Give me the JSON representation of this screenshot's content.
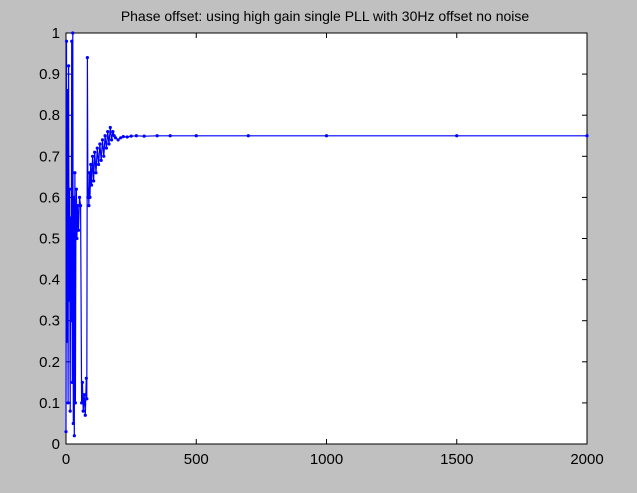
{
  "window": {
    "background": "#c0c0c0"
  },
  "chart_data": {
    "type": "line",
    "title": "Phase offset: using high gain single PLL with 30Hz offset no noise",
    "xlabel": "",
    "ylabel": "",
    "xlim": [
      0,
      2000
    ],
    "ylim": [
      0,
      1
    ],
    "xticks": [
      0,
      500,
      1000,
      1500,
      2000
    ],
    "xtick_labels": [
      "0",
      "500",
      "1000",
      "1500",
      "2000"
    ],
    "yticks": [
      0,
      0.1,
      0.2,
      0.3,
      0.4,
      0.5,
      0.6,
      0.7,
      0.8,
      0.9,
      1
    ],
    "ytick_labels": [
      "0",
      "0.1",
      "0.2",
      "0.3",
      "0.4",
      "0.5",
      "0.6",
      "0.7",
      "0.8",
      "0.9",
      "1"
    ],
    "grid": false,
    "legend": "none",
    "series": [
      {
        "color": "#0000ff",
        "marker": "dot",
        "x": [
          0,
          2,
          4,
          6,
          8,
          10,
          12,
          14,
          16,
          18,
          20,
          22,
          24,
          26,
          28,
          30,
          32,
          34,
          36,
          38,
          40,
          42,
          45,
          48,
          52,
          56,
          60,
          63,
          66,
          70,
          74,
          78,
          80,
          82,
          84,
          86,
          88,
          90,
          92,
          95,
          98,
          102,
          106,
          110,
          115,
          120,
          125,
          130,
          135,
          140,
          145,
          150,
          155,
          160,
          165,
          170,
          175,
          180,
          185,
          190,
          200,
          210,
          220,
          235,
          250,
          270,
          300,
          350,
          400,
          500,
          700,
          1000,
          1500,
          2000
        ],
        "y": [
          0.03,
          0.98,
          0.25,
          0.86,
          0.1,
          0.92,
          0.35,
          0.62,
          0.08,
          0.55,
          0.3,
          0.98,
          0.15,
          1.0,
          0.05,
          0.6,
          0.02,
          0.66,
          0.1,
          0.55,
          0.62,
          0.5,
          0.58,
          0.52,
          0.6,
          0.58,
          0.1,
          0.15,
          0.08,
          0.12,
          0.07,
          0.16,
          0.11,
          0.94,
          0.6,
          0.62,
          0.58,
          0.66,
          0.6,
          0.68,
          0.63,
          0.7,
          0.64,
          0.71,
          0.66,
          0.72,
          0.68,
          0.73,
          0.69,
          0.74,
          0.7,
          0.75,
          0.72,
          0.76,
          0.73,
          0.77,
          0.74,
          0.76,
          0.75,
          0.745,
          0.74,
          0.745,
          0.748,
          0.747,
          0.749,
          0.75,
          0.749,
          0.75,
          0.75,
          0.75,
          0.75,
          0.75,
          0.75,
          0.75
        ]
      }
    ]
  }
}
